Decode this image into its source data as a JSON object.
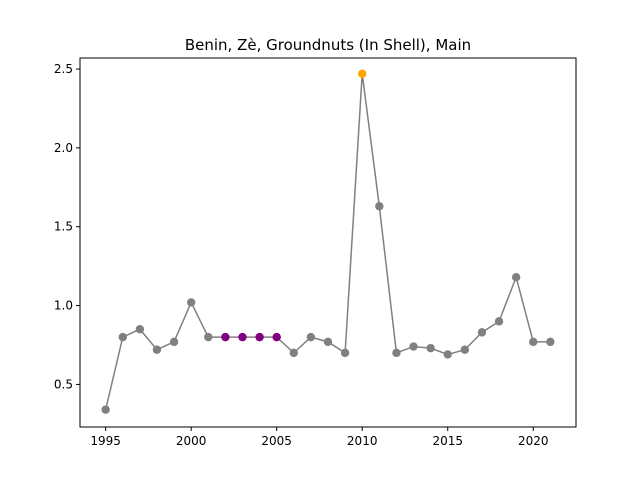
{
  "chart_data": {
    "type": "line",
    "title": "Benin, Zè, Groundnuts (In Shell), Main",
    "xlabel": "",
    "ylabel": "",
    "xlim": [
      1993.5,
      2022.5
    ],
    "ylim": [
      0.23,
      2.57
    ],
    "xticks": [
      1995,
      2000,
      2005,
      2010,
      2015,
      2020
    ],
    "yticks": [
      0.5,
      1.0,
      1.5,
      2.0,
      2.5
    ],
    "ytick_labels": [
      "0.5",
      "1.0",
      "1.5",
      "2.0",
      "2.5"
    ],
    "grid": false,
    "line_color": "#808080",
    "point_colors": {
      "normal": "#808080",
      "highlight": "#800080",
      "max": "#FFA500"
    },
    "series": [
      {
        "x": [
          1995,
          1996,
          1997,
          1998,
          1999,
          2000,
          2001,
          2002,
          2003,
          2004,
          2005,
          2006,
          2007,
          2008,
          2009,
          2010,
          2011,
          2012,
          2013,
          2014,
          2015,
          2016,
          2017,
          2018,
          2019,
          2020,
          2021
        ],
        "values": [
          0.34,
          0.8,
          0.85,
          0.72,
          0.77,
          1.02,
          0.8,
          0.8,
          0.8,
          0.8,
          0.8,
          0.7,
          0.8,
          0.77,
          0.7,
          2.47,
          1.63,
          0.7,
          0.74,
          0.73,
          0.69,
          0.72,
          0.83,
          0.9,
          1.18,
          0.77,
          0.77
        ],
        "point_types": [
          "normal",
          "normal",
          "normal",
          "normal",
          "normal",
          "normal",
          "normal",
          "highlight",
          "highlight",
          "highlight",
          "highlight",
          "normal",
          "normal",
          "normal",
          "normal",
          "max",
          "normal",
          "normal",
          "normal",
          "normal",
          "normal",
          "normal",
          "normal",
          "normal",
          "normal",
          "normal",
          "normal"
        ]
      }
    ]
  }
}
